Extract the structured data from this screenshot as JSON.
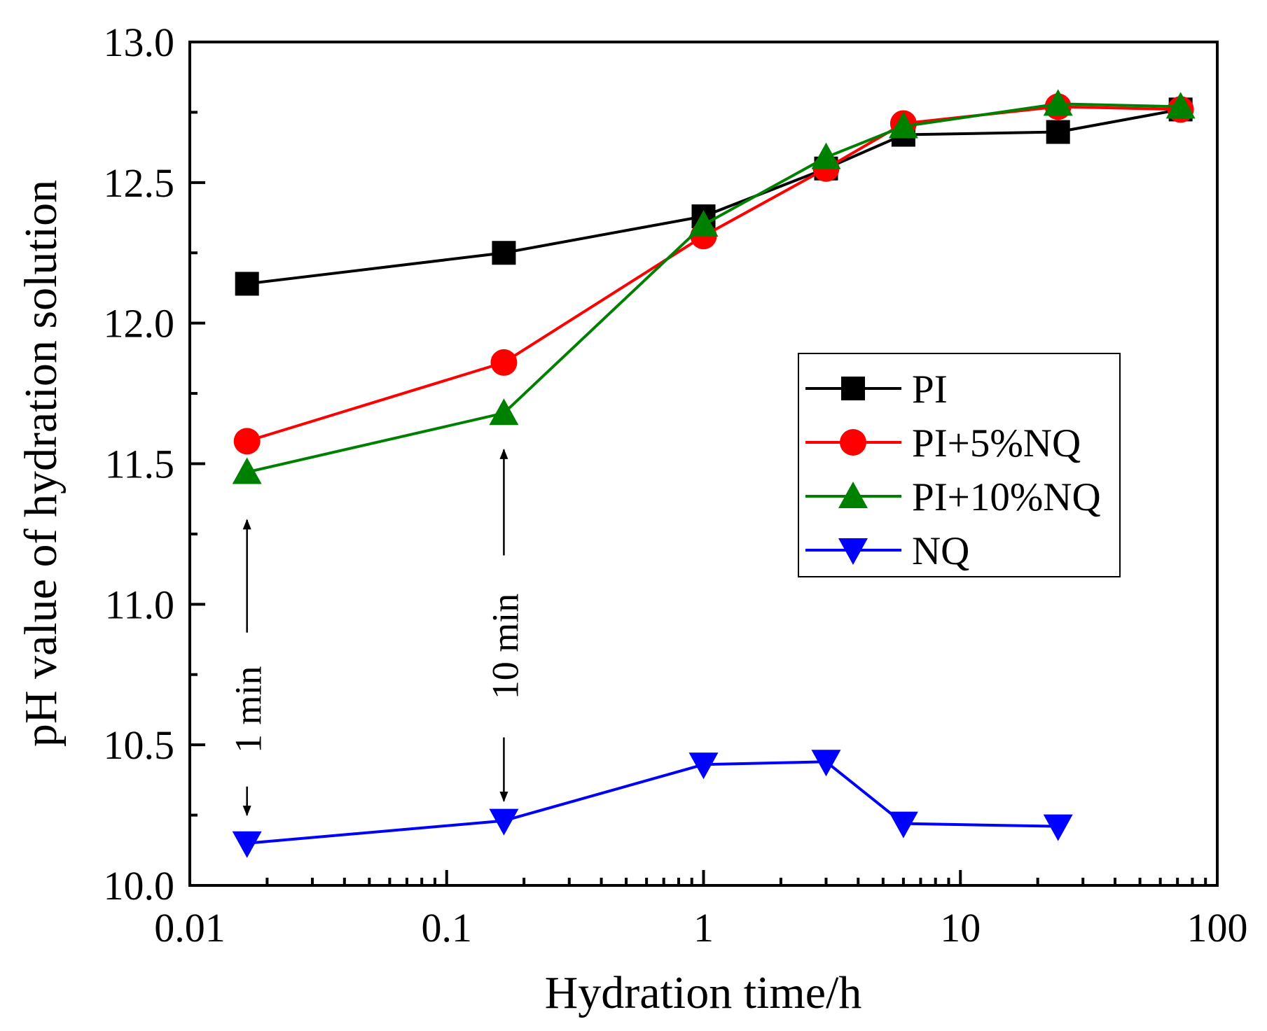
{
  "chart_data": {
    "type": "line",
    "title": "",
    "xlabel": "Hydration time/h",
    "ylabel": "pH value of hydration solution",
    "xscale": "log",
    "xlim": [
      0.01,
      100
    ],
    "ylim": [
      10.0,
      13.0
    ],
    "xticks": [
      "0.01",
      "0.1",
      "1",
      "10",
      "100"
    ],
    "xtick_values": [
      0.01,
      0.1,
      1,
      10,
      100
    ],
    "yticks": [
      "10.0",
      "10.5",
      "11.0",
      "11.5",
      "12.0",
      "12.5",
      "13.0"
    ],
    "ytick_values": [
      10.0,
      10.5,
      11.0,
      11.5,
      12.0,
      12.5,
      13.0
    ],
    "grid": false,
    "legend_position": "center-right",
    "series": [
      {
        "name": "PI",
        "color": "#000000",
        "marker": "square",
        "x": [
          0.0167,
          0.167,
          1,
          3,
          6,
          24,
          72
        ],
        "y": [
          12.14,
          12.25,
          12.38,
          12.55,
          12.67,
          12.68,
          12.76
        ]
      },
      {
        "name": "PI+5%NQ",
        "color": "#ff0000",
        "marker": "circle",
        "x": [
          0.0167,
          0.167,
          1,
          3,
          6,
          24,
          72
        ],
        "y": [
          11.58,
          11.86,
          12.31,
          12.55,
          12.71,
          12.77,
          12.76
        ]
      },
      {
        "name": "PI+10%NQ",
        "color": "#008000",
        "marker": "triangle-up",
        "x": [
          0.0167,
          0.167,
          1,
          3,
          6,
          24,
          72
        ],
        "y": [
          11.47,
          11.68,
          12.35,
          12.59,
          12.7,
          12.78,
          12.77
        ]
      },
      {
        "name": "NQ",
        "color": "#0000ff",
        "marker": "triangle-down",
        "x": [
          0.0167,
          0.167,
          1,
          3,
          6,
          24
        ],
        "y": [
          10.15,
          10.23,
          10.43,
          10.44,
          10.22,
          10.21
        ]
      }
    ],
    "annotations": [
      {
        "text": "1 min",
        "x": 0.0167,
        "y_top": 11.3,
        "y_bottom": 10.25
      },
      {
        "text": "10 min",
        "x": 0.167,
        "y_top": 11.55,
        "y_bottom": 10.3
      }
    ]
  }
}
